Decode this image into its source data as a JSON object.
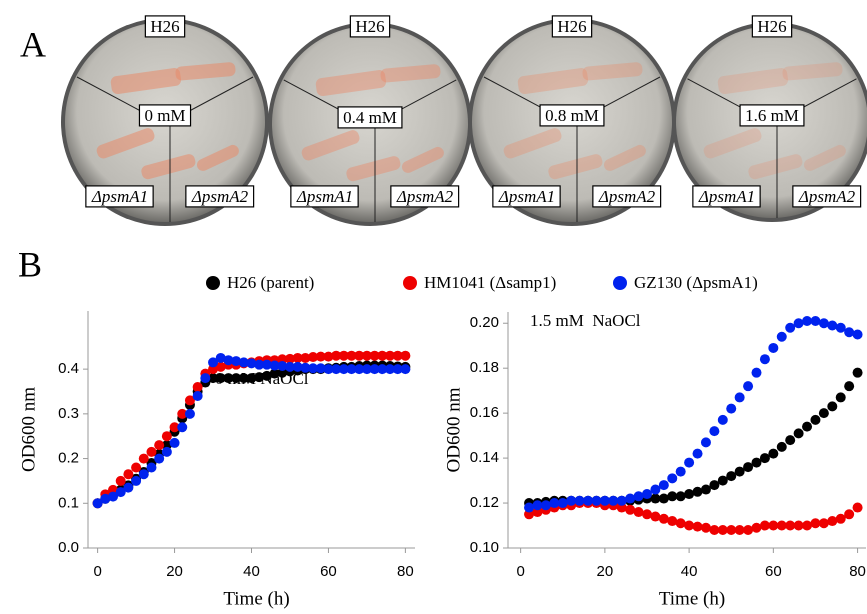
{
  "panel_labels": [
    "A",
    "B"
  ],
  "plates": [
    {
      "top": "H26",
      "center": "0 mM",
      "left": "ΔpsmA1",
      "right": "ΔpsmA2"
    },
    {
      "top": "H26",
      "center": "0.4 mM",
      "left": "ΔpsmA1",
      "right": "ΔpsmA2"
    },
    {
      "top": "H26",
      "center": "0.8 mM",
      "left": "ΔpsmA1",
      "right": "ΔpsmA2"
    },
    {
      "top": "H26",
      "center": "1.6 mM",
      "left": "ΔpsmA1",
      "right": "ΔpsmA2"
    }
  ],
  "chart_data": [
    {
      "type": "scatter",
      "annotation": "0 mM NaOCl",
      "xlabel": "Time (h)",
      "ylabel": "OD600 nm",
      "xlim": [
        -2.5,
        82.5
      ],
      "xticks": [
        0,
        20,
        40,
        60,
        80
      ],
      "ylim": [
        0,
        0.53
      ],
      "yticks": [
        {
          "value": 0,
          "label": "0.0"
        },
        0.1,
        0.2,
        0.3,
        0.4
      ],
      "x": [
        0,
        2,
        4,
        6,
        8,
        10,
        12,
        14,
        16,
        18,
        20,
        22,
        24,
        26,
        28,
        30,
        32,
        34,
        36,
        38,
        40,
        42,
        44,
        46,
        48,
        50,
        52,
        54,
        56,
        58,
        60,
        62,
        64,
        66,
        68,
        70,
        72,
        74,
        76,
        78,
        80
      ],
      "series": [
        {
          "name": "H26 (parent)",
          "color": "#000000",
          "values": [
            0.1,
            0.11,
            0.12,
            0.13,
            0.14,
            0.155,
            0.17,
            0.19,
            0.21,
            0.23,
            0.26,
            0.29,
            0.32,
            0.35,
            0.37,
            0.38,
            0.38,
            0.38,
            0.38,
            0.38,
            0.38,
            0.382,
            0.385,
            0.39,
            0.392,
            0.395,
            0.397,
            0.4,
            0.4,
            0.4,
            0.402,
            0.403,
            0.405,
            0.405,
            0.407,
            0.408,
            0.408,
            0.408,
            0.407,
            0.406,
            0.405
          ]
        },
        {
          "name": "HM1041 (Δsamp1)",
          "color": "#ee0000",
          "values": [
            0.1,
            0.12,
            0.13,
            0.15,
            0.165,
            0.18,
            0.2,
            0.215,
            0.23,
            0.25,
            0.27,
            0.3,
            0.33,
            0.36,
            0.39,
            0.4,
            0.405,
            0.41,
            0.41,
            0.413,
            0.415,
            0.418,
            0.42,
            0.42,
            0.422,
            0.423,
            0.425,
            0.425,
            0.427,
            0.428,
            0.428,
            0.43,
            0.43,
            0.43,
            0.43,
            0.43,
            0.43,
            0.43,
            0.43,
            0.43,
            0.43
          ]
        },
        {
          "name": "GZ130 (ΔpsmA1)",
          "color": "#0022ee",
          "values": [
            0.1,
            0.11,
            0.115,
            0.125,
            0.135,
            0.15,
            0.165,
            0.18,
            0.2,
            0.215,
            0.235,
            0.27,
            0.3,
            0.34,
            0.38,
            0.415,
            0.425,
            0.42,
            0.418,
            0.415,
            0.413,
            0.41,
            0.41,
            0.408,
            0.407,
            0.405,
            0.405,
            0.403,
            0.402,
            0.402,
            0.4,
            0.4,
            0.4,
            0.4,
            0.4,
            0.4,
            0.4,
            0.4,
            0.4,
            0.4,
            0.4
          ]
        }
      ]
    },
    {
      "type": "scatter",
      "annotation": "1.5 mM  NaOCl",
      "xlabel": "Time (h)",
      "ylabel": "OD600 nm",
      "xlim": [
        -3,
        82
      ],
      "xticks": [
        0,
        20,
        40,
        60,
        80
      ],
      "ylim": [
        0.1,
        0.205
      ],
      "yticks": [
        {
          "value": 0.1,
          "label": "0.10"
        },
        0.12,
        0.14,
        0.16,
        0.18,
        {
          "value": 0.2,
          "label": "0.20"
        }
      ],
      "x": [
        2,
        4,
        6,
        8,
        10,
        12,
        14,
        16,
        18,
        20,
        22,
        24,
        26,
        28,
        30,
        32,
        34,
        36,
        38,
        40,
        42,
        44,
        46,
        48,
        50,
        52,
        54,
        56,
        58,
        60,
        62,
        64,
        66,
        68,
        70,
        72,
        74,
        76,
        78,
        80
      ],
      "series": [
        {
          "color": "#000000",
          "values": [
            0.12,
            0.12,
            0.1205,
            0.121,
            0.121,
            0.121,
            0.121,
            0.121,
            0.121,
            0.121,
            0.121,
            0.121,
            0.121,
            0.1215,
            0.122,
            0.122,
            0.122,
            0.123,
            0.123,
            0.124,
            0.125,
            0.126,
            0.128,
            0.13,
            0.132,
            0.134,
            0.136,
            0.138,
            0.14,
            0.142,
            0.145,
            0.148,
            0.151,
            0.154,
            0.157,
            0.16,
            0.163,
            0.167,
            0.172,
            0.178
          ]
        },
        {
          "color": "#ee0000",
          "values": [
            0.115,
            0.116,
            0.117,
            0.118,
            0.119,
            0.119,
            0.12,
            0.12,
            0.12,
            0.119,
            0.119,
            0.118,
            0.117,
            0.116,
            0.115,
            0.114,
            0.113,
            0.112,
            0.111,
            0.11,
            0.1095,
            0.109,
            0.108,
            0.108,
            0.108,
            0.108,
            0.108,
            0.109,
            0.11,
            0.11,
            0.11,
            0.11,
            0.11,
            0.11,
            0.111,
            0.111,
            0.112,
            0.113,
            0.115,
            0.118
          ]
        },
        {
          "color": "#0022ee",
          "values": [
            0.118,
            0.119,
            0.119,
            0.12,
            0.12,
            0.121,
            0.121,
            0.121,
            0.121,
            0.121,
            0.121,
            0.121,
            0.122,
            0.123,
            0.124,
            0.126,
            0.128,
            0.131,
            0.134,
            0.138,
            0.142,
            0.147,
            0.152,
            0.157,
            0.162,
            0.167,
            0.172,
            0.178,
            0.184,
            0.189,
            0.194,
            0.198,
            0.2,
            0.201,
            0.201,
            0.2,
            0.199,
            0.198,
            0.196,
            0.195
          ]
        }
      ]
    }
  ]
}
